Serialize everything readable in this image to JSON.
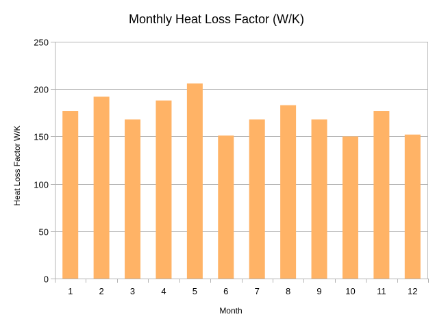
{
  "chart_data": {
    "type": "bar",
    "title": "Monthly Heat Loss Factor (W/K)",
    "xlabel": "Month",
    "ylabel": "Heat Loss Factor W/K",
    "categories": [
      "1",
      "2",
      "3",
      "4",
      "5",
      "6",
      "7",
      "8",
      "9",
      "10",
      "11",
      "12"
    ],
    "values": [
      177,
      192,
      168,
      188,
      206,
      151,
      168,
      183,
      168,
      150,
      177,
      152
    ],
    "ylim": [
      0,
      250
    ],
    "yticks": [
      0,
      50,
      100,
      150,
      200,
      250
    ],
    "grid": true,
    "bar_color": "#FFB366",
    "grid_color": "#b3b3b3"
  }
}
